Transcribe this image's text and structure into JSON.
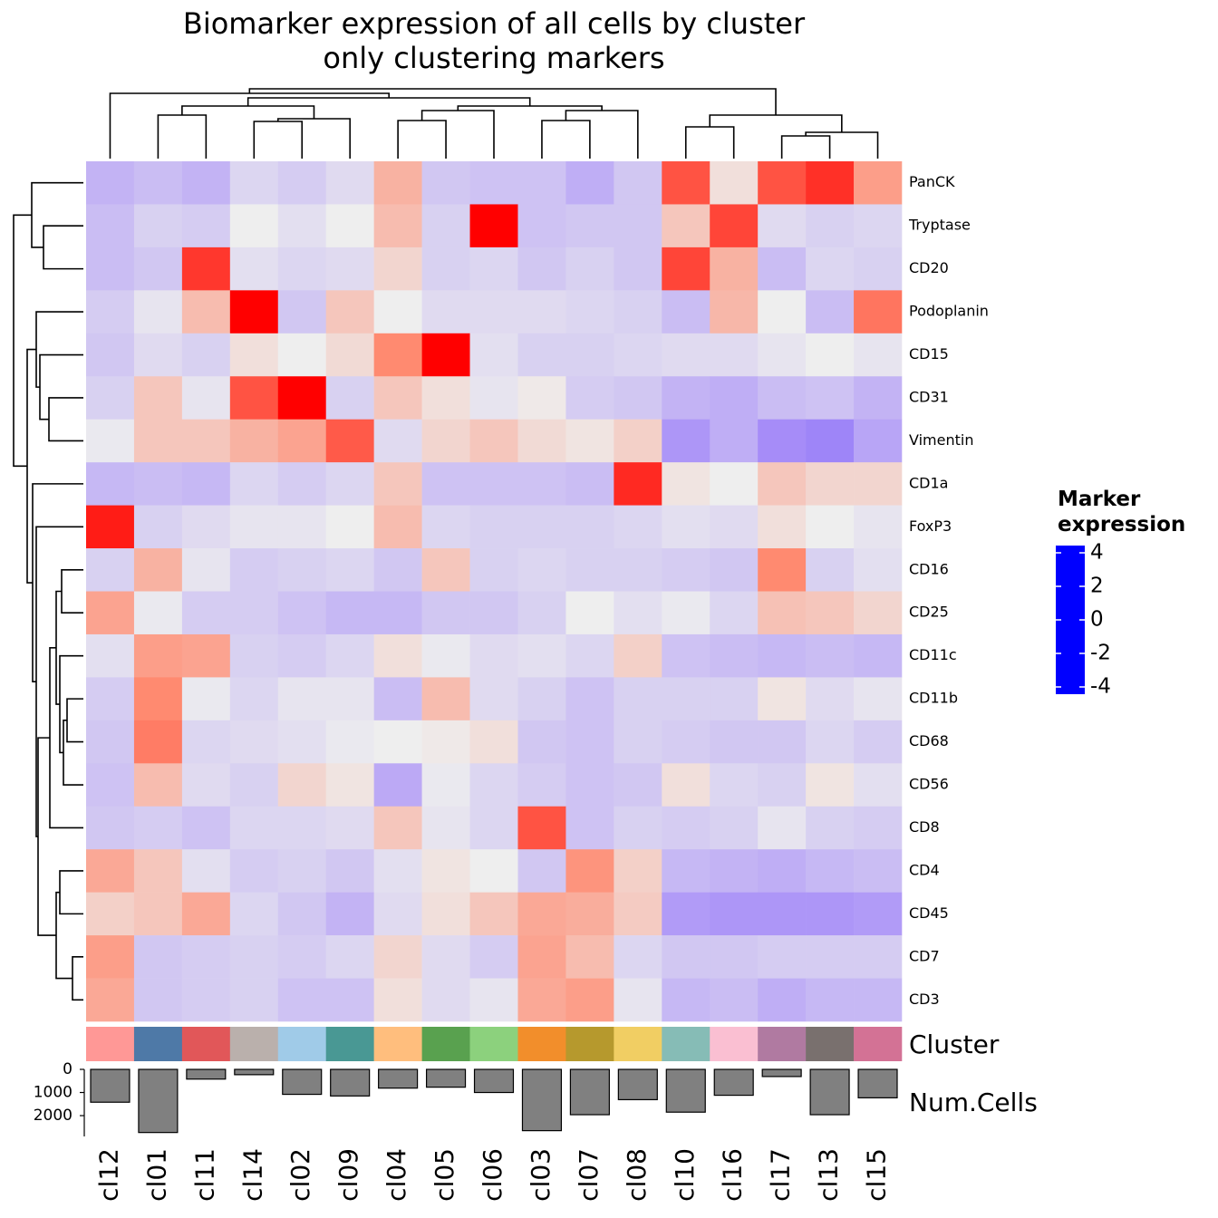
{
  "chart_data": {
    "type": "heatmap",
    "title": "Biomarker expression of all cells by cluster",
    "subtitle": "only clustering markers",
    "x": [
      "cl12",
      "cl01",
      "cl11",
      "cl14",
      "cl02",
      "cl09",
      "cl04",
      "cl05",
      "cl06",
      "cl03",
      "cl07",
      "cl08",
      "cl10",
      "cl16",
      "cl17",
      "cl13",
      "cl15"
    ],
    "y": [
      "PanCK",
      "Tryptase",
      "CD20",
      "Podoplanin",
      "CD15",
      "CD31",
      "Vimentin",
      "CD1a",
      "FoxP3",
      "CD16",
      "CD25",
      "CD11c",
      "CD11b",
      "CD68",
      "CD56",
      "CD8",
      "CD4",
      "CD45",
      "CD7",
      "CD3"
    ],
    "values": [
      [
        -1.2,
        -1.0,
        -1.2,
        -0.5,
        -0.7,
        -0.4,
        1.2,
        -0.8,
        -0.9,
        -0.9,
        -1.3,
        -0.8,
        2.8,
        0.3,
        2.8,
        3.3,
        1.6
      ],
      [
        -1.0,
        -0.6,
        -0.7,
        0,
        -0.3,
        0,
        1.0,
        -0.6,
        4.0,
        -0.9,
        -0.8,
        -0.8,
        0.8,
        3.0,
        -0.4,
        -0.6,
        -0.5
      ],
      [
        -1.0,
        -0.8,
        3.2,
        -0.3,
        -0.5,
        -0.4,
        0.5,
        -0.6,
        -0.5,
        -0.8,
        -0.6,
        -0.8,
        3.0,
        1.2,
        -1.0,
        -0.5,
        -0.6
      ],
      [
        -0.7,
        -0.2,
        1.0,
        4.0,
        -0.8,
        0.8,
        0,
        -0.4,
        -0.4,
        -0.4,
        -0.5,
        -0.6,
        -1.0,
        1.1,
        0,
        -1.0,
        2.3
      ],
      [
        -0.8,
        -0.4,
        -0.6,
        0.3,
        0,
        0.4,
        2.0,
        4.0,
        -0.3,
        -0.6,
        -0.6,
        -0.5,
        -0.4,
        -0.4,
        -0.2,
        0,
        -0.2
      ],
      [
        -0.6,
        0.8,
        -0.2,
        2.8,
        4.0,
        -0.6,
        0.8,
        0.3,
        -0.2,
        0.1,
        -0.7,
        -0.8,
        -1.2,
        -1.3,
        -1.0,
        -0.9,
        -1.2
      ],
      [
        -0.1,
        0.8,
        0.8,
        1.2,
        1.5,
        2.7,
        -0.4,
        0.5,
        0.8,
        0.4,
        0.2,
        0.6,
        -1.8,
        -1.3,
        -2.0,
        -2.1,
        -1.5
      ],
      [
        -1.1,
        -1.0,
        -1.1,
        -0.5,
        -0.7,
        -0.5,
        0.8,
        -0.9,
        -0.9,
        -0.9,
        -1.0,
        3.4,
        0.2,
        0,
        0.8,
        0.5,
        0.5
      ],
      [
        3.6,
        -0.6,
        -0.4,
        -0.2,
        -0.2,
        0,
        1.0,
        -0.5,
        -0.6,
        -0.6,
        -0.6,
        -0.5,
        -0.3,
        -0.4,
        0.3,
        0,
        -0.2
      ],
      [
        -0.6,
        1.2,
        -0.2,
        -0.7,
        -0.6,
        -0.5,
        -0.8,
        0.8,
        -0.6,
        -0.5,
        -0.6,
        -0.6,
        -0.7,
        -0.8,
        2.0,
        -0.6,
        -0.3
      ],
      [
        1.5,
        -0.1,
        -0.7,
        -0.7,
        -0.9,
        -1.1,
        -1.1,
        -0.8,
        -0.8,
        -0.6,
        0,
        -0.3,
        -0.1,
        -0.5,
        0.9,
        0.8,
        0.5
      ],
      [
        -0.3,
        1.6,
        1.5,
        -0.6,
        -0.7,
        -0.5,
        0.3,
        -0.1,
        -0.4,
        -0.3,
        -0.5,
        0.6,
        -0.9,
        -1.0,
        -1.1,
        -1.0,
        -1.1
      ],
      [
        -0.7,
        2.0,
        -0.1,
        -0.5,
        -0.2,
        -0.2,
        -1.0,
        1.0,
        -0.4,
        -0.6,
        -0.9,
        -0.6,
        -0.6,
        -0.6,
        0.2,
        -0.4,
        -0.2
      ],
      [
        -0.8,
        2.2,
        -0.5,
        -0.4,
        -0.3,
        -0.1,
        0,
        0.1,
        0.3,
        -0.8,
        -0.9,
        -0.6,
        -0.7,
        -0.8,
        -0.8,
        -0.5,
        -0.7
      ],
      [
        -0.9,
        1.0,
        -0.4,
        -0.6,
        0.5,
        0.2,
        -1.4,
        -0.1,
        -0.5,
        -0.7,
        -0.9,
        -0.8,
        0.3,
        -0.5,
        -0.6,
        0.2,
        -0.3
      ],
      [
        -0.8,
        -0.7,
        -0.9,
        -0.5,
        -0.5,
        -0.4,
        0.8,
        -0.2,
        -0.5,
        2.8,
        -0.9,
        -0.6,
        -0.7,
        -0.6,
        -0.2,
        -0.6,
        -0.7
      ],
      [
        1.4,
        0.8,
        -0.3,
        -0.7,
        -0.6,
        -0.8,
        -0.3,
        0.2,
        0,
        -0.8,
        1.8,
        0.6,
        -1.1,
        -1.2,
        -1.3,
        -1.1,
        -1.0
      ],
      [
        0.6,
        0.8,
        1.4,
        -0.5,
        -0.8,
        -1.2,
        -0.4,
        0.3,
        0.8,
        1.4,
        1.3,
        0.7,
        -1.7,
        -1.8,
        -1.8,
        -1.8,
        -1.7
      ],
      [
        1.6,
        -0.8,
        -0.7,
        -0.6,
        -0.7,
        -0.5,
        0.5,
        -0.4,
        -0.7,
        1.5,
        1.0,
        -0.5,
        -0.8,
        -0.8,
        -0.7,
        -0.7,
        -0.7
      ],
      [
        1.4,
        -0.8,
        -0.7,
        -0.6,
        -0.9,
        -0.9,
        0.3,
        -0.4,
        -0.2,
        1.4,
        1.6,
        -0.2,
        -1.1,
        -1.0,
        -1.3,
        -1.1,
        -1.1
      ]
    ],
    "legend_title": "Marker expression",
    "color_stops": [
      {
        "value": -4,
        "color": "#0000ff"
      },
      {
        "value": -2,
        "color": "#a68cf8"
      },
      {
        "value": 0,
        "color": "#eeeeee"
      },
      {
        "value": 2,
        "color": "#ff8a70"
      },
      {
        "value": 4,
        "color": "#ff0000"
      }
    ],
    "colorbar_ticks": [
      4,
      2,
      0,
      -2,
      -4
    ],
    "colorbar_lim": [
      -4,
      4
    ],
    "cluster_annotation": {
      "label": "Cluster",
      "colors": [
        "#ff9896",
        "#4e79a7",
        "#e15759",
        "#bab0ac",
        "#a0cbe8",
        "#499894",
        "#ffbe7d",
        "#59a14f",
        "#8cd17d",
        "#f28e2b",
        "#b6992d",
        "#f1ce63",
        "#86bcb6",
        "#fabfd2",
        "#b07aa1",
        "#79706e",
        "#d37295"
      ]
    },
    "num_cells": {
      "label": "Num.Cells",
      "values": [
        1420,
        2730,
        420,
        230,
        1080,
        1150,
        810,
        770,
        1000,
        2650,
        1960,
        1310,
        1850,
        1120,
        310,
        1960,
        1230
      ],
      "color": "#808080",
      "ylim": [
        0,
        2900
      ],
      "yticks": [
        0,
        1000,
        2000
      ]
    }
  }
}
